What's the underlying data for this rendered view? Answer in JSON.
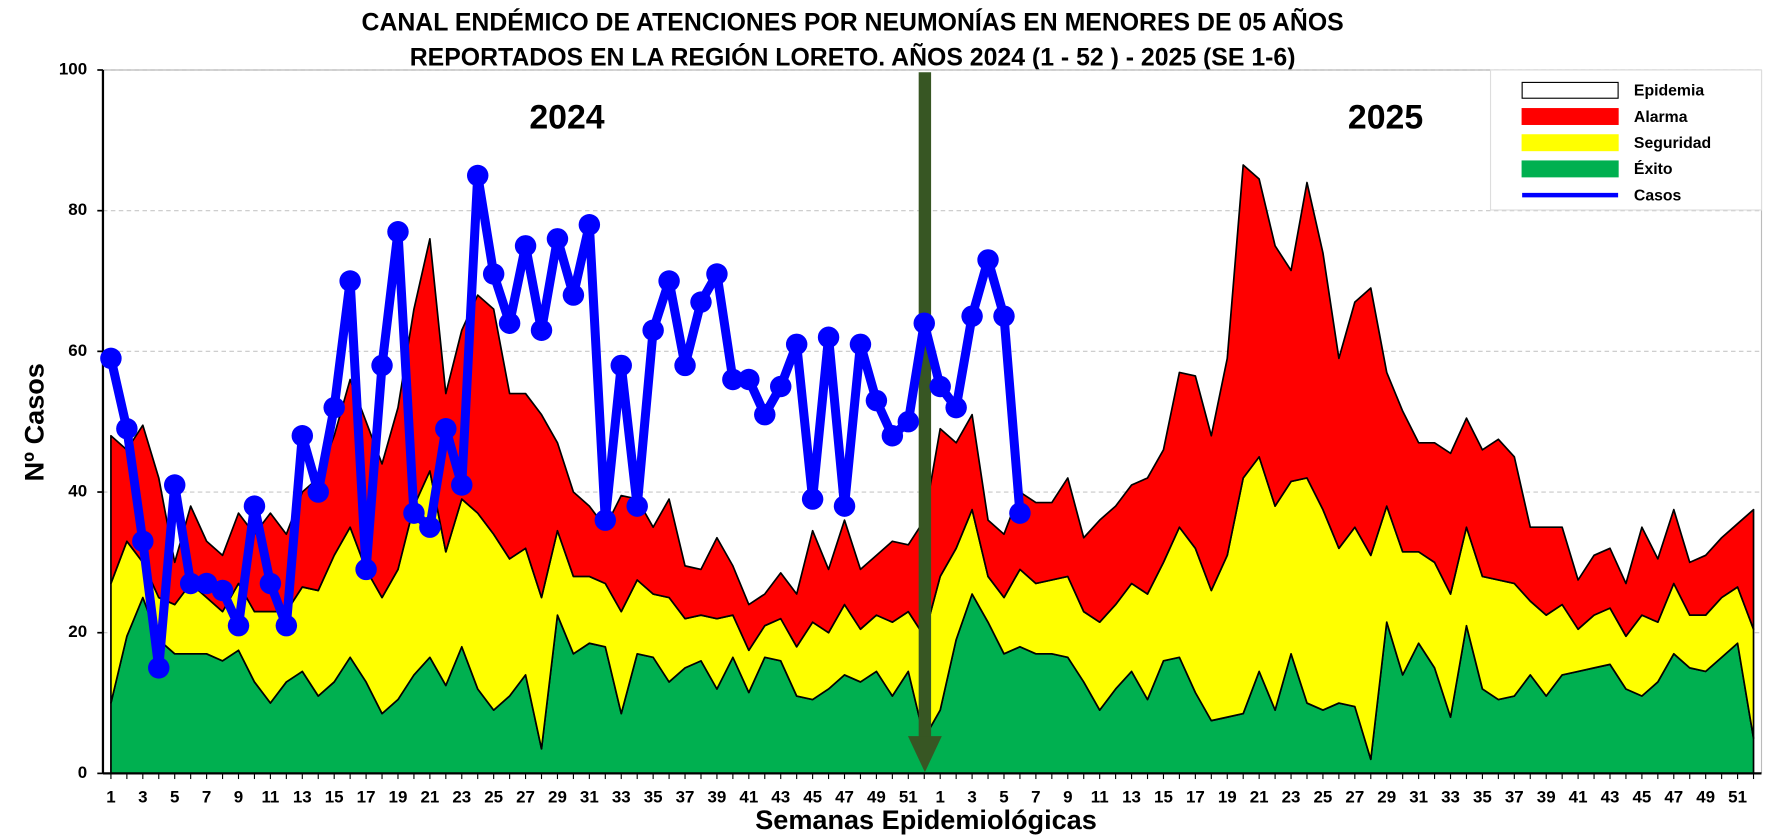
{
  "chart_data": {
    "type": "area",
    "title": [
      "CANAL ENDÉMICO DE ATENCIONES POR NEUMONÍAS EN MENORES DE 05 AÑOS",
      "REPORTADOS EN LA REGIÓN LORETO. AÑOS 2024 (1 - 52 ) - 2025 (SE 1-6)"
    ],
    "x_label": "Semanas Epidemiológicas",
    "y_label": "Nº Casos",
    "annotations": [
      "2024",
      "2025"
    ],
    "categories": [
      "1",
      null,
      "3",
      null,
      "5",
      null,
      "7",
      null,
      "9",
      null,
      "11",
      null,
      "13",
      null,
      "15",
      null,
      "17",
      null,
      "19",
      null,
      "21",
      null,
      "23",
      null,
      "25",
      null,
      "27",
      null,
      "29",
      null,
      "31",
      null,
      "33",
      null,
      "35",
      null,
      "37",
      null,
      "39",
      null,
      "41",
      null,
      "43",
      null,
      "45",
      null,
      "47",
      null,
      "49",
      null,
      "51",
      null,
      "1",
      null,
      "3",
      null,
      "5",
      null,
      "7",
      null,
      "9",
      null,
      "11",
      null,
      "13",
      null,
      "15",
      null,
      "17",
      null,
      "19",
      null,
      "21",
      null,
      "23",
      null,
      "25",
      null,
      "27",
      null,
      "29",
      null,
      "31",
      null,
      "33",
      null,
      "35",
      null,
      "37",
      null,
      "39",
      null,
      "41",
      null,
      "43",
      null,
      "45",
      null,
      "47",
      null,
      "49",
      null,
      "51",
      null
    ],
    "series": [
      {
        "name": "Epidemia",
        "color": "#ffffff"
      },
      {
        "name": "Alarma",
        "color": "#ff0000",
        "values": [
          21,
          13,
          19.5,
          17,
          6,
          11,
          8,
          8,
          10,
          11,
          14,
          11,
          13.5,
          16,
          17,
          21,
          21,
          19,
          23,
          28,
          33,
          22.5,
          24,
          31,
          32,
          23.5,
          22,
          26,
          12.5,
          12,
          10,
          8,
          16.5,
          11.5,
          9.5,
          14,
          7.5,
          6.5,
          11.5,
          7,
          6.5,
          4.5,
          6.5,
          7.5,
          13,
          9,
          12,
          8.5,
          8.5,
          11.5,
          9.5,
          16.5,
          21,
          15,
          13.5,
          8,
          9,
          11,
          11.5,
          11,
          14,
          10.5,
          14.5,
          14,
          14,
          16.5,
          16,
          22,
          24.5,
          22,
          28,
          44.5,
          39.5,
          37,
          30,
          42,
          36.5,
          27,
          32,
          38,
          19,
          20,
          15.5,
          17,
          20,
          15.5,
          18,
          20,
          18,
          10.5,
          12.5,
          11,
          7,
          8.5,
          8.5,
          7.5,
          12.5,
          9,
          10.5,
          7.5,
          8.5,
          8.5,
          9,
          17
        ]
      },
      {
        "name": "Seguridad",
        "color": "#ffff00",
        "values": [
          17,
          13.5,
          5,
          6,
          7,
          10,
          8,
          7,
          9.5,
          10,
          13,
          10,
          12,
          15,
          18,
          18.5,
          16,
          16.5,
          18.5,
          24,
          26.5,
          19,
          21,
          25,
          25,
          19.5,
          18,
          21.5,
          12,
          11,
          9.5,
          9,
          14.5,
          10.5,
          9,
          12,
          7,
          6.5,
          10,
          6,
          6,
          4.5,
          6,
          7,
          11,
          8,
          10,
          7.5,
          8,
          10.5,
          8.5,
          14.5,
          19,
          13,
          12,
          6.5,
          8,
          11,
          10,
          10.5,
          11.5,
          10,
          12.5,
          12,
          12.5,
          15,
          14,
          18.5,
          20.5,
          18.5,
          23,
          33.5,
          30.5,
          29,
          24.5,
          32,
          28.5,
          22,
          25.5,
          29,
          16.5,
          17.5,
          13,
          15,
          17.5,
          14,
          16,
          17,
          16,
          10.5,
          11.5,
          10,
          6,
          7.5,
          8,
          7.5,
          11.5,
          8.5,
          10,
          7.5,
          8,
          8.5,
          8,
          15.5
        ]
      },
      {
        "name": "Éxito",
        "color": "#00b050",
        "values": [
          10,
          19.5,
          25,
          19,
          17,
          17,
          17,
          16,
          17.5,
          13,
          10,
          13,
          14.5,
          11,
          13,
          16.5,
          13,
          8.5,
          10.5,
          14,
          16.5,
          12.5,
          18,
          12,
          9,
          11,
          14,
          3.5,
          22.5,
          17,
          18.5,
          18,
          8.5,
          17,
          16.5,
          13,
          15,
          16,
          12,
          16.5,
          11.5,
          16.5,
          16,
          11,
          10.5,
          12,
          14,
          13,
          14.5,
          11,
          14.5,
          5,
          9,
          19,
          25.5,
          21.5,
          17,
          18,
          17,
          17,
          16.5,
          13,
          9,
          12,
          14.5,
          10.5,
          16,
          16.5,
          11.5,
          7.5,
          8,
          8.5,
          14.5,
          9,
          17,
          10,
          9,
          10,
          9.5,
          2,
          21.5,
          14,
          18.5,
          15,
          8,
          21,
          12,
          10.5,
          11,
          14,
          11,
          14,
          14.5,
          15,
          15.5,
          12,
          11,
          13,
          17,
          15,
          14.5,
          16.5,
          18.5,
          5
        ]
      },
      {
        "name": "Casos",
        "color": "#0000ff",
        "type": "line",
        "values": [
          59,
          49,
          33,
          15,
          41,
          27,
          27,
          26,
          21,
          38,
          27,
          21,
          48,
          40,
          52,
          70,
          29,
          58,
          77,
          37,
          35,
          49,
          41,
          85,
          71,
          64,
          75,
          63,
          76,
          68,
          78,
          36,
          58,
          38,
          63,
          70,
          58,
          67,
          71,
          56,
          56,
          51,
          55,
          61,
          39,
          62,
          38,
          61,
          53,
          48,
          50,
          64,
          55,
          52,
          65,
          73,
          65,
          37,
          null,
          null,
          null,
          null,
          null,
          null,
          null,
          null,
          null,
          null,
          null,
          null,
          null,
          null,
          null,
          null,
          null,
          null,
          null,
          null,
          null,
          null,
          null,
          null,
          null,
          null,
          null,
          null,
          null,
          null,
          null,
          null,
          null,
          null,
          null,
          null,
          null,
          null,
          null,
          null,
          null,
          null,
          null,
          null,
          null,
          null
        ]
      }
    ],
    "stacked": true,
    "ylim": [
      0,
      100
    ],
    "yticks": [
      0,
      20,
      40,
      60,
      80,
      100
    ],
    "grid": true,
    "legend": "upper right"
  }
}
